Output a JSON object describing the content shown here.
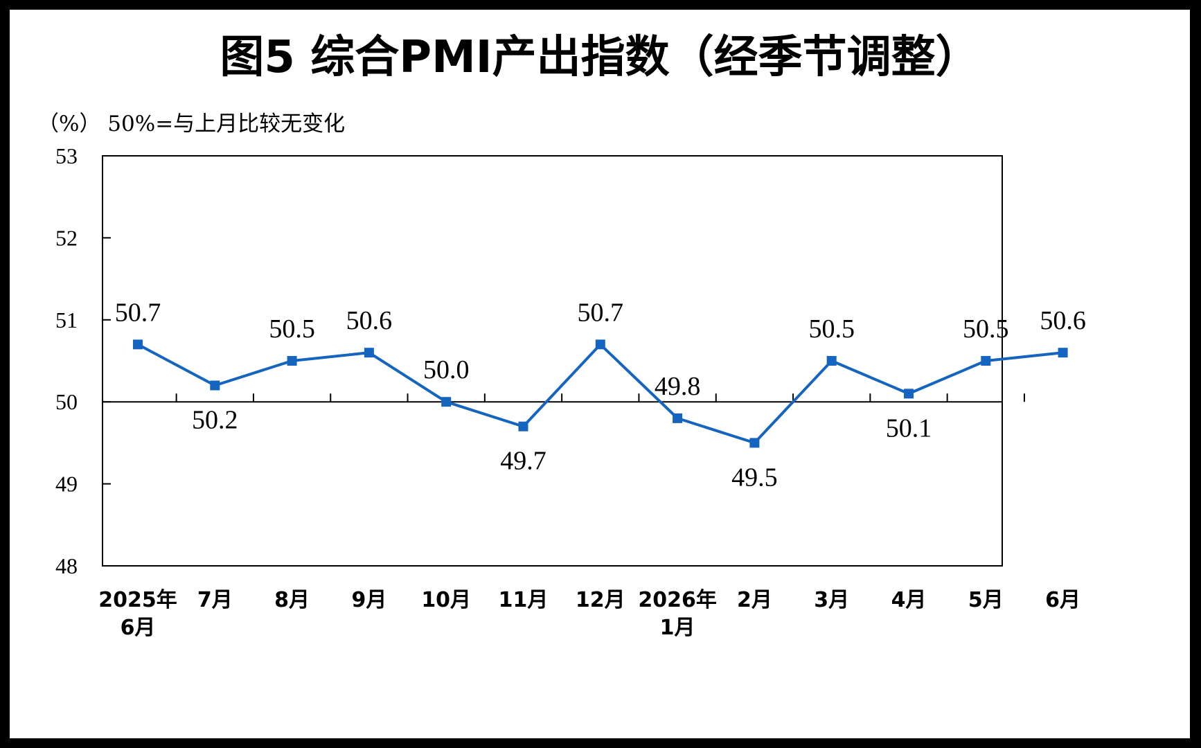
{
  "chart_data": {
    "type": "line",
    "title": "图5 综合PMI产出指数（经季节调整）",
    "unit_note": "（%） 50%=与上月比较无变化",
    "categories": [
      [
        "2025年",
        "6月"
      ],
      [
        "7月"
      ],
      [
        "8月"
      ],
      [
        "9月"
      ],
      [
        "10月"
      ],
      [
        "11月"
      ],
      [
        "12月"
      ],
      [
        "2026年",
        "1月"
      ],
      [
        "2月"
      ],
      [
        "3月"
      ],
      [
        "4月"
      ],
      [
        "5月"
      ],
      [
        "6月"
      ]
    ],
    "series": [
      {
        "values": [
          50.7,
          50.2,
          50.5,
          50.6,
          50.0,
          49.7,
          50.7,
          49.8,
          49.5,
          50.5,
          50.1,
          50.5,
          50.6
        ],
        "labels": [
          "50.7",
          "50.2",
          "50.5",
          "50.6",
          "50.0",
          "49.7",
          "50.7",
          "49.8",
          "49.5",
          "50.5",
          "50.1",
          "50.5",
          "50.6"
        ],
        "color": "#1565C0"
      }
    ],
    "ylim": [
      48,
      53
    ],
    "yticks": [
      "48",
      "49",
      "50",
      "51",
      "52",
      "53"
    ],
    "reference_line": 50,
    "legend": "none",
    "grid": false
  }
}
